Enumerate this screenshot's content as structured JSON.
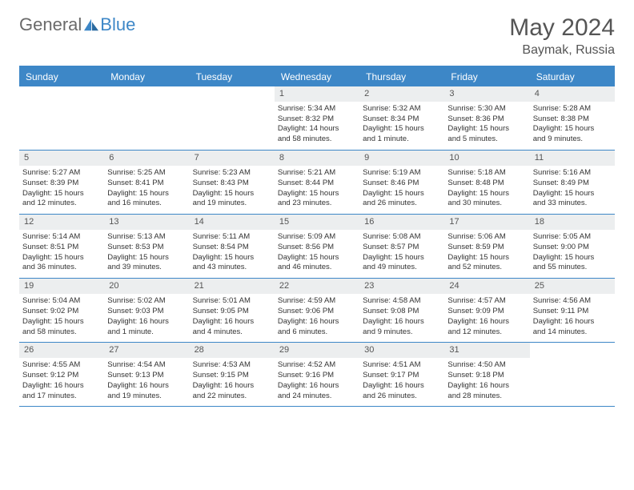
{
  "brand": {
    "part1": "General",
    "part2": "Blue"
  },
  "title": "May 2024",
  "location": "Baymak, Russia",
  "colors": {
    "accent": "#3d87c7",
    "dayNumBg": "#eceeef",
    "text": "#333333"
  },
  "dayNames": [
    "Sunday",
    "Monday",
    "Tuesday",
    "Wednesday",
    "Thursday",
    "Friday",
    "Saturday"
  ],
  "cells": [
    {
      "day": "",
      "sunrise": "",
      "sunset": "",
      "daylight1": "",
      "daylight2": ""
    },
    {
      "day": "",
      "sunrise": "",
      "sunset": "",
      "daylight1": "",
      "daylight2": ""
    },
    {
      "day": "",
      "sunrise": "",
      "sunset": "",
      "daylight1": "",
      "daylight2": ""
    },
    {
      "day": "1",
      "sunrise": "Sunrise: 5:34 AM",
      "sunset": "Sunset: 8:32 PM",
      "daylight1": "Daylight: 14 hours",
      "daylight2": "and 58 minutes."
    },
    {
      "day": "2",
      "sunrise": "Sunrise: 5:32 AM",
      "sunset": "Sunset: 8:34 PM",
      "daylight1": "Daylight: 15 hours",
      "daylight2": "and 1 minute."
    },
    {
      "day": "3",
      "sunrise": "Sunrise: 5:30 AM",
      "sunset": "Sunset: 8:36 PM",
      "daylight1": "Daylight: 15 hours",
      "daylight2": "and 5 minutes."
    },
    {
      "day": "4",
      "sunrise": "Sunrise: 5:28 AM",
      "sunset": "Sunset: 8:38 PM",
      "daylight1": "Daylight: 15 hours",
      "daylight2": "and 9 minutes."
    },
    {
      "day": "5",
      "sunrise": "Sunrise: 5:27 AM",
      "sunset": "Sunset: 8:39 PM",
      "daylight1": "Daylight: 15 hours",
      "daylight2": "and 12 minutes."
    },
    {
      "day": "6",
      "sunrise": "Sunrise: 5:25 AM",
      "sunset": "Sunset: 8:41 PM",
      "daylight1": "Daylight: 15 hours",
      "daylight2": "and 16 minutes."
    },
    {
      "day": "7",
      "sunrise": "Sunrise: 5:23 AM",
      "sunset": "Sunset: 8:43 PM",
      "daylight1": "Daylight: 15 hours",
      "daylight2": "and 19 minutes."
    },
    {
      "day": "8",
      "sunrise": "Sunrise: 5:21 AM",
      "sunset": "Sunset: 8:44 PM",
      "daylight1": "Daylight: 15 hours",
      "daylight2": "and 23 minutes."
    },
    {
      "day": "9",
      "sunrise": "Sunrise: 5:19 AM",
      "sunset": "Sunset: 8:46 PM",
      "daylight1": "Daylight: 15 hours",
      "daylight2": "and 26 minutes."
    },
    {
      "day": "10",
      "sunrise": "Sunrise: 5:18 AM",
      "sunset": "Sunset: 8:48 PM",
      "daylight1": "Daylight: 15 hours",
      "daylight2": "and 30 minutes."
    },
    {
      "day": "11",
      "sunrise": "Sunrise: 5:16 AM",
      "sunset": "Sunset: 8:49 PM",
      "daylight1": "Daylight: 15 hours",
      "daylight2": "and 33 minutes."
    },
    {
      "day": "12",
      "sunrise": "Sunrise: 5:14 AM",
      "sunset": "Sunset: 8:51 PM",
      "daylight1": "Daylight: 15 hours",
      "daylight2": "and 36 minutes."
    },
    {
      "day": "13",
      "sunrise": "Sunrise: 5:13 AM",
      "sunset": "Sunset: 8:53 PM",
      "daylight1": "Daylight: 15 hours",
      "daylight2": "and 39 minutes."
    },
    {
      "day": "14",
      "sunrise": "Sunrise: 5:11 AM",
      "sunset": "Sunset: 8:54 PM",
      "daylight1": "Daylight: 15 hours",
      "daylight2": "and 43 minutes."
    },
    {
      "day": "15",
      "sunrise": "Sunrise: 5:09 AM",
      "sunset": "Sunset: 8:56 PM",
      "daylight1": "Daylight: 15 hours",
      "daylight2": "and 46 minutes."
    },
    {
      "day": "16",
      "sunrise": "Sunrise: 5:08 AM",
      "sunset": "Sunset: 8:57 PM",
      "daylight1": "Daylight: 15 hours",
      "daylight2": "and 49 minutes."
    },
    {
      "day": "17",
      "sunrise": "Sunrise: 5:06 AM",
      "sunset": "Sunset: 8:59 PM",
      "daylight1": "Daylight: 15 hours",
      "daylight2": "and 52 minutes."
    },
    {
      "day": "18",
      "sunrise": "Sunrise: 5:05 AM",
      "sunset": "Sunset: 9:00 PM",
      "daylight1": "Daylight: 15 hours",
      "daylight2": "and 55 minutes."
    },
    {
      "day": "19",
      "sunrise": "Sunrise: 5:04 AM",
      "sunset": "Sunset: 9:02 PM",
      "daylight1": "Daylight: 15 hours",
      "daylight2": "and 58 minutes."
    },
    {
      "day": "20",
      "sunrise": "Sunrise: 5:02 AM",
      "sunset": "Sunset: 9:03 PM",
      "daylight1": "Daylight: 16 hours",
      "daylight2": "and 1 minute."
    },
    {
      "day": "21",
      "sunrise": "Sunrise: 5:01 AM",
      "sunset": "Sunset: 9:05 PM",
      "daylight1": "Daylight: 16 hours",
      "daylight2": "and 4 minutes."
    },
    {
      "day": "22",
      "sunrise": "Sunrise: 4:59 AM",
      "sunset": "Sunset: 9:06 PM",
      "daylight1": "Daylight: 16 hours",
      "daylight2": "and 6 minutes."
    },
    {
      "day": "23",
      "sunrise": "Sunrise: 4:58 AM",
      "sunset": "Sunset: 9:08 PM",
      "daylight1": "Daylight: 16 hours",
      "daylight2": "and 9 minutes."
    },
    {
      "day": "24",
      "sunrise": "Sunrise: 4:57 AM",
      "sunset": "Sunset: 9:09 PM",
      "daylight1": "Daylight: 16 hours",
      "daylight2": "and 12 minutes."
    },
    {
      "day": "25",
      "sunrise": "Sunrise: 4:56 AM",
      "sunset": "Sunset: 9:11 PM",
      "daylight1": "Daylight: 16 hours",
      "daylight2": "and 14 minutes."
    },
    {
      "day": "26",
      "sunrise": "Sunrise: 4:55 AM",
      "sunset": "Sunset: 9:12 PM",
      "daylight1": "Daylight: 16 hours",
      "daylight2": "and 17 minutes."
    },
    {
      "day": "27",
      "sunrise": "Sunrise: 4:54 AM",
      "sunset": "Sunset: 9:13 PM",
      "daylight1": "Daylight: 16 hours",
      "daylight2": "and 19 minutes."
    },
    {
      "day": "28",
      "sunrise": "Sunrise: 4:53 AM",
      "sunset": "Sunset: 9:15 PM",
      "daylight1": "Daylight: 16 hours",
      "daylight2": "and 22 minutes."
    },
    {
      "day": "29",
      "sunrise": "Sunrise: 4:52 AM",
      "sunset": "Sunset: 9:16 PM",
      "daylight1": "Daylight: 16 hours",
      "daylight2": "and 24 minutes."
    },
    {
      "day": "30",
      "sunrise": "Sunrise: 4:51 AM",
      "sunset": "Sunset: 9:17 PM",
      "daylight1": "Daylight: 16 hours",
      "daylight2": "and 26 minutes."
    },
    {
      "day": "31",
      "sunrise": "Sunrise: 4:50 AM",
      "sunset": "Sunset: 9:18 PM",
      "daylight1": "Daylight: 16 hours",
      "daylight2": "and 28 minutes."
    },
    {
      "day": "",
      "sunrise": "",
      "sunset": "",
      "daylight1": "",
      "daylight2": ""
    }
  ]
}
